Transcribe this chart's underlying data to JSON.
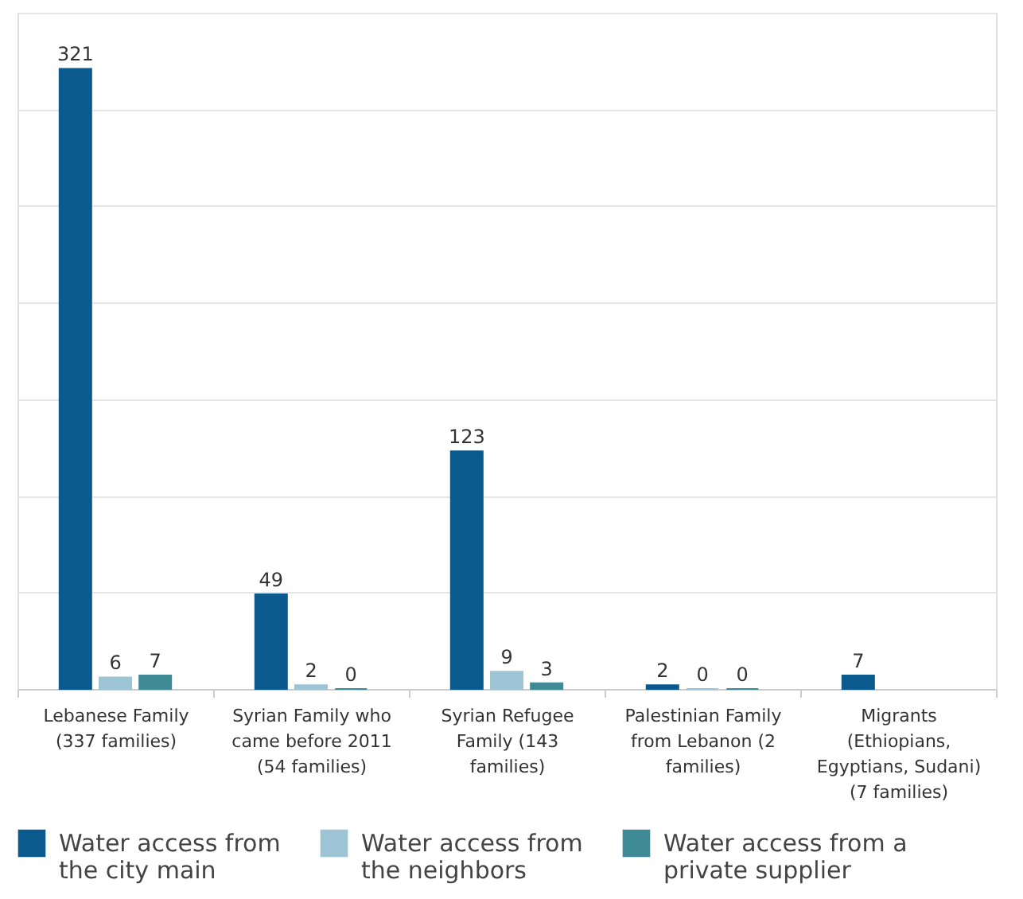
{
  "chart_data": {
    "type": "bar",
    "categories": [
      "Lebanese Family (337 families)",
      "Syrian Family who came before 2011 (54 families)",
      "Syrian Refugee Family (143 families)",
      "Palestinian Family from Lebanon (2 families)",
      "Migrants (Ethiopians, Egyptians, Sudani) (7 families)"
    ],
    "series": [
      {
        "name": "Water access from the city main",
        "color": "#0b5a8e",
        "values": [
          321,
          49,
          123,
          2,
          7
        ]
      },
      {
        "name": "Water access from the neighbors",
        "color": "#9dc4d5",
        "values": [
          6,
          2,
          9,
          0,
          null
        ]
      },
      {
        "name": "Water access from a private supplier",
        "color": "#3e8b96",
        "values": [
          7,
          0,
          3,
          0,
          null
        ]
      }
    ],
    "ylim": [
      0,
      350
    ],
    "yticks": [
      {
        "value": 0,
        "label": null
      },
      {
        "value": 50,
        "label": null
      },
      {
        "value": 100,
        "label": null
      },
      {
        "value": 150,
        "label": null
      },
      {
        "value": 200,
        "label": null
      },
      {
        "value": 250,
        "label": null
      },
      {
        "value": 300,
        "label": null
      },
      {
        "value": 350,
        "label": null
      }
    ],
    "tick_labels": "x",
    "grid": "y",
    "data_labels": true,
    "legend": "bottom"
  }
}
